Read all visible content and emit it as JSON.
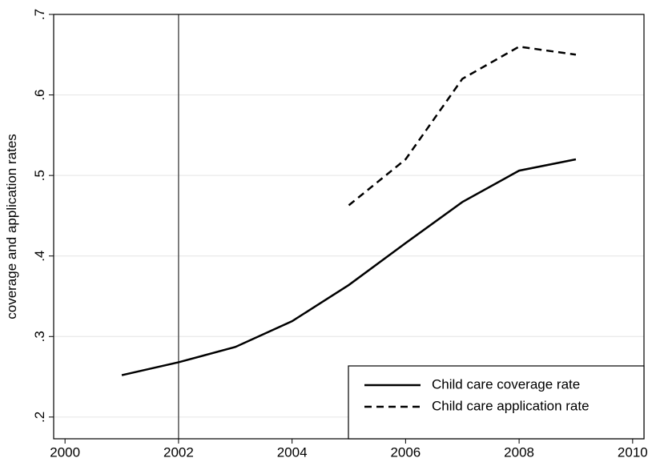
{
  "chart_data": {
    "type": "line",
    "ylabel": "coverage and application rates",
    "x": [
      2001,
      2002,
      2003,
      2004,
      2005,
      2006,
      2007,
      2008,
      2009
    ],
    "series": [
      {
        "name": "Child care coverage rate",
        "color": "#000000",
        "dash": "solid",
        "values": [
          0.252,
          0.268,
          0.287,
          0.319,
          0.364,
          0.416,
          0.467,
          0.506,
          0.52
        ]
      },
      {
        "name": "Child care application rate",
        "color": "#000000",
        "dash": "dashed",
        "values": [
          null,
          null,
          null,
          null,
          0.463,
          0.52,
          0.62,
          0.66,
          0.65
        ]
      }
    ],
    "xlim": [
      1999.8,
      2010.2
    ],
    "xticks": [
      2000,
      2002,
      2004,
      2006,
      2008,
      2010
    ],
    "ylim": [
      0.173,
      0.7
    ],
    "yticks": [
      {
        "value": 0.2,
        "label": ".2"
      },
      {
        "value": 0.3,
        "label": ".3"
      },
      {
        "value": 0.4,
        "label": ".4"
      },
      {
        "value": 0.5,
        "label": ".5"
      },
      {
        "value": 0.6,
        "label": ".6"
      },
      {
        "value": 0.7,
        "label": ".7"
      }
    ],
    "xline": 2002,
    "grid": true,
    "legend": "lower-right"
  }
}
